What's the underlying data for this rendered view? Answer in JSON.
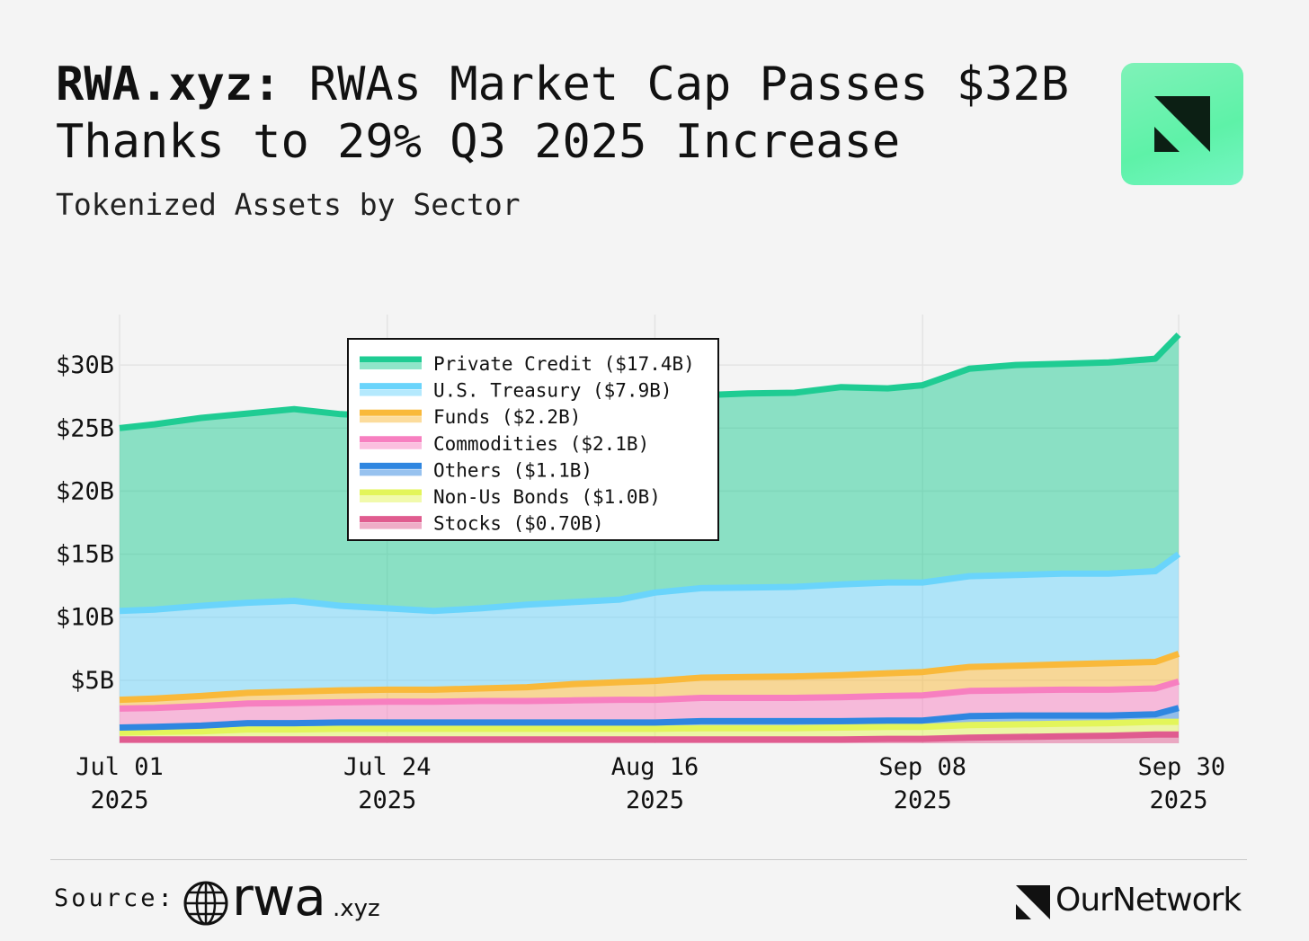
{
  "header": {
    "title_bold": "RWA.xyz:",
    "title_rest": " RWAs Market Cap Passes $32B Thanks to 29% Q3 2025 Increase",
    "subtitle": "Tokenized Assets by Sector"
  },
  "footer": {
    "source_label": "Source:",
    "source_brand": "rwa",
    "source_brand_suffix": ".xyz",
    "publisher": "OurNetwork"
  },
  "chart_data": {
    "type": "area",
    "stacked": true,
    "subtitle": "Tokenized Assets by Sector",
    "x": [
      "2025-07-01",
      "2025-07-04",
      "2025-07-08",
      "2025-07-12",
      "2025-07-16",
      "2025-07-20",
      "2025-07-24",
      "2025-07-28",
      "2025-08-01",
      "2025-08-05",
      "2025-08-09",
      "2025-08-13",
      "2025-08-16",
      "2025-08-20",
      "2025-08-24",
      "2025-08-28",
      "2025-09-01",
      "2025-09-05",
      "2025-09-08",
      "2025-09-12",
      "2025-09-16",
      "2025-09-20",
      "2025-09-24",
      "2025-09-28",
      "2025-09-30"
    ],
    "xticks": [
      {
        "date": "2025-07-01",
        "line1": "Jul 01",
        "line2": "2025"
      },
      {
        "date": "2025-07-24",
        "line1": "Jul 24",
        "line2": "2025"
      },
      {
        "date": "2025-08-16",
        "line1": "Aug 16",
        "line2": "2025"
      },
      {
        "date": "2025-09-08",
        "line1": "Sep 08",
        "line2": "2025"
      },
      {
        "date": "2025-09-30",
        "line1": "Sep 30",
        "line2": "2025"
      }
    ],
    "yticks": [
      {
        "value": 5,
        "label": "$5B"
      },
      {
        "value": 10,
        "label": "$10B"
      },
      {
        "value": 15,
        "label": "$15B"
      },
      {
        "value": 20,
        "label": "$20B"
      },
      {
        "value": 25,
        "label": "$25B"
      },
      {
        "value": 30,
        "label": "$30B"
      }
    ],
    "ylim": [
      0,
      34
    ],
    "xlim": [
      "2025-07-01",
      "2025-09-30"
    ],
    "grid": true,
    "legend_position": "top-left",
    "series": [
      {
        "name": "Stocks",
        "label": "Stocks ($0.70B)",
        "color": "#e05c8f",
        "values": [
          0.3,
          0.3,
          0.3,
          0.3,
          0.3,
          0.3,
          0.3,
          0.3,
          0.3,
          0.3,
          0.3,
          0.3,
          0.3,
          0.3,
          0.3,
          0.3,
          0.3,
          0.35,
          0.35,
          0.45,
          0.5,
          0.55,
          0.6,
          0.7,
          0.7
        ]
      },
      {
        "name": "Non-Us Bonds",
        "label": "Non-Us Bonds ($1.0B)",
        "color": "#e3f55a",
        "values": [
          0.55,
          0.6,
          0.65,
          0.8,
          0.8,
          0.85,
          0.85,
          0.85,
          0.85,
          0.85,
          0.85,
          0.85,
          0.85,
          0.9,
          0.9,
          0.9,
          0.95,
          0.95,
          0.95,
          1.0,
          1.0,
          1.0,
          1.0,
          1.0,
          1.0
        ]
      },
      {
        "name": "Others",
        "label": "Others ($1.1B)",
        "color": "#2f86e0",
        "values": [
          0.4,
          0.4,
          0.45,
          0.5,
          0.5,
          0.5,
          0.5,
          0.5,
          0.5,
          0.5,
          0.5,
          0.5,
          0.5,
          0.55,
          0.55,
          0.55,
          0.5,
          0.5,
          0.5,
          0.7,
          0.7,
          0.65,
          0.6,
          0.6,
          1.1
        ]
      },
      {
        "name": "Commodities",
        "label": "Commodities ($2.1B)",
        "color": "#f77fc0",
        "values": [
          1.5,
          1.5,
          1.55,
          1.55,
          1.6,
          1.6,
          1.65,
          1.65,
          1.7,
          1.7,
          1.75,
          1.8,
          1.8,
          1.85,
          1.85,
          1.85,
          1.9,
          1.95,
          2.0,
          2.0,
          2.0,
          2.05,
          2.05,
          2.05,
          2.1
        ]
      },
      {
        "name": "Funds",
        "label": "Funds ($2.2B)",
        "color": "#f9b93a",
        "values": [
          0.7,
          0.75,
          0.8,
          0.85,
          0.9,
          0.95,
          0.95,
          0.95,
          1.0,
          1.1,
          1.3,
          1.4,
          1.5,
          1.6,
          1.65,
          1.7,
          1.75,
          1.8,
          1.85,
          1.9,
          1.95,
          2.0,
          2.1,
          2.1,
          2.2
        ]
      },
      {
        "name": "U.S. Treasury",
        "label": "U.S. Treasury ($7.9B)",
        "color": "#6ad4fb",
        "values": [
          7.05,
          7.05,
          7.15,
          7.15,
          7.2,
          6.7,
          6.45,
          6.25,
          6.35,
          6.55,
          6.5,
          6.55,
          7.0,
          7.1,
          7.1,
          7.1,
          7.2,
          7.2,
          7.1,
          7.2,
          7.2,
          7.2,
          7.1,
          7.2,
          7.9
        ]
      },
      {
        "name": "Private Credit",
        "label": "Private Credit ($17.4B)",
        "color": "#1fcc93",
        "values": [
          14.5,
          14.7,
          14.9,
          15.0,
          15.2,
          15.2,
          15.25,
          15.3,
          15.3,
          15.3,
          15.3,
          15.4,
          15.3,
          15.3,
          15.4,
          15.4,
          15.65,
          15.4,
          15.65,
          16.45,
          16.65,
          16.65,
          16.75,
          16.85,
          17.4
        ]
      }
    ]
  }
}
